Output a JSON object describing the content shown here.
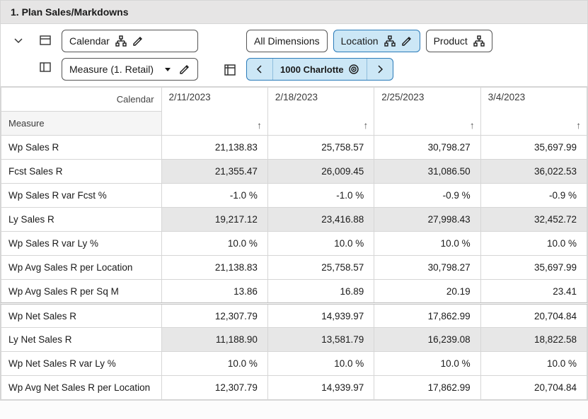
{
  "title": "1. Plan Sales/Markdowns",
  "toolbar": {
    "calendar_label": "Calendar",
    "measure_label": "Measure (1. Retail)",
    "all_dims_label": "All Dimensions",
    "location_label": "Location",
    "product_label": "Product",
    "breadcrumb_label": "1000 Charlotte"
  },
  "headers": {
    "calendar": "Calendar",
    "measure": "Measure"
  },
  "dates": [
    "2/11/2023",
    "2/18/2023",
    "2/25/2023",
    "3/4/2023"
  ],
  "rows": [
    {
      "label": "Wp Sales R",
      "values": [
        "21,138.83",
        "25,758.57",
        "30,798.27",
        "35,697.99"
      ],
      "shaded": false
    },
    {
      "label": "Fcst Sales R",
      "values": [
        "21,355.47",
        "26,009.45",
        "31,086.50",
        "36,022.53"
      ],
      "shaded": true
    },
    {
      "label": "Wp Sales R var Fcst %",
      "values": [
        "-1.0 %",
        "-1.0 %",
        "-0.9 %",
        "-0.9 %"
      ],
      "shaded": false
    },
    {
      "label": "Ly Sales R",
      "values": [
        "19,217.12",
        "23,416.88",
        "27,998.43",
        "32,452.72"
      ],
      "shaded": true
    },
    {
      "label": "Wp Sales R var Ly %",
      "values": [
        "10.0 %",
        "10.0 %",
        "10.0 %",
        "10.0 %"
      ],
      "shaded": false,
      "rightedge": true
    },
    {
      "label": "Wp Avg Sales R per Location",
      "values": [
        "21,138.83",
        "25,758.57",
        "30,798.27",
        "35,697.99"
      ],
      "shaded": false
    },
    {
      "label": "Wp Avg Sales R per Sq M",
      "values": [
        "13.86",
        "16.89",
        "20.19",
        "23.41"
      ],
      "shaded": false
    },
    {
      "label": "Wp Net Sales R",
      "values": [
        "12,307.79",
        "14,939.97",
        "17,862.99",
        "20,704.84"
      ],
      "shaded": false,
      "split": true
    },
    {
      "label": "Ly Net Sales R",
      "values": [
        "11,188.90",
        "13,581.79",
        "16,239.08",
        "18,822.58"
      ],
      "shaded": true
    },
    {
      "label": "Wp Net Sales R var Ly %",
      "values": [
        "10.0 %",
        "10.0 %",
        "10.0 %",
        "10.0 %"
      ],
      "shaded": false
    },
    {
      "label": "Wp Avg Net Sales R per Location",
      "values": [
        "12,307.79",
        "14,939.97",
        "17,862.99",
        "20,704.84"
      ],
      "shaded": false
    }
  ],
  "colors": {
    "selected_bg": "#cce7f6",
    "selected_border": "#2b7bb9",
    "shade": "#e7e7e7",
    "border": "#d6d6d6"
  }
}
